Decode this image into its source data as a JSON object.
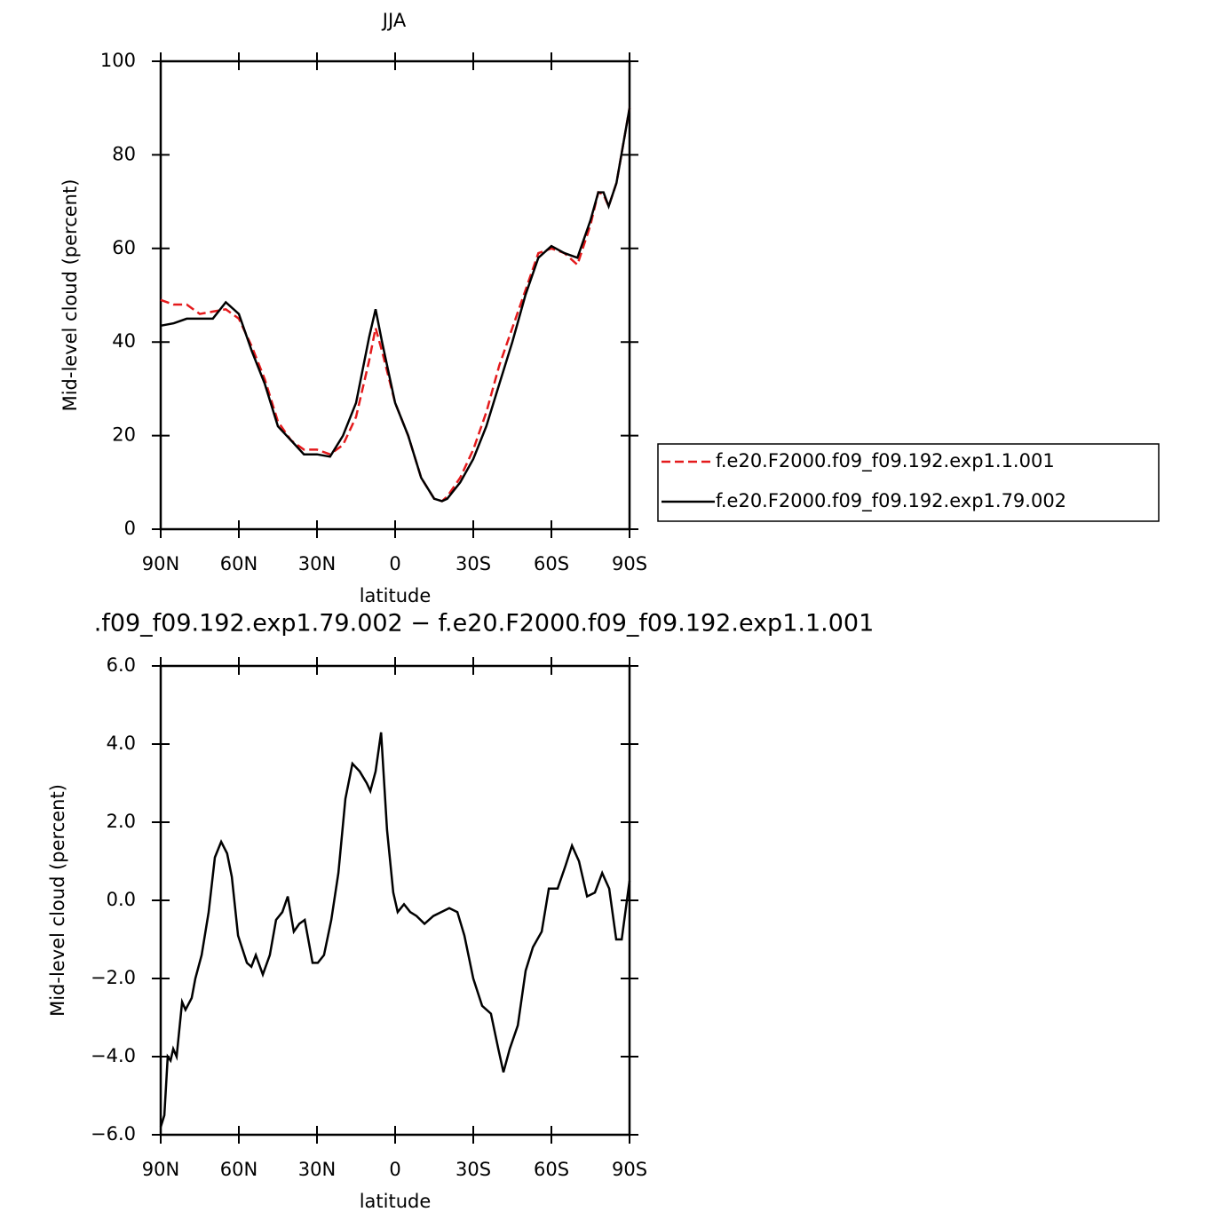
{
  "chart_data": [
    {
      "type": "line",
      "title": "JJA",
      "xlabel": "latitude",
      "ylabel": "Mid-level cloud (percent)",
      "x": [
        90,
        85,
        80,
        75,
        70,
        65,
        60,
        55,
        50,
        45,
        40,
        35,
        30,
        25,
        20,
        15,
        10,
        7.5,
        5,
        0,
        -5,
        -10,
        -15,
        -18,
        -20,
        -25,
        -30,
        -35,
        -40,
        -45,
        -50,
        -55,
        -60,
        -65,
        -70,
        -75,
        -78,
        -80,
        -82,
        -85,
        -90
      ],
      "xlim": [
        90,
        -90
      ],
      "xticks": [
        {
          "value": 90,
          "label": "90N"
        },
        {
          "value": 60,
          "label": "60N"
        },
        {
          "value": 30,
          "label": "30N"
        },
        0,
        {
          "value": -30,
          "label": "30S"
        },
        {
          "value": -60,
          "label": "60S"
        },
        {
          "value": -90,
          "label": "90S"
        }
      ],
      "ylim": [
        0,
        100
      ],
      "yticks": [
        0,
        20,
        40,
        60,
        80,
        100
      ],
      "legend": "right",
      "series": [
        {
          "name": "f.e20.F2000.f09_f09.192.exp1.1.001",
          "color": "#e41a1c",
          "dashed": true,
          "values": [
            49,
            48,
            48,
            46,
            46.5,
            47,
            45,
            39,
            32,
            23,
            19,
            17,
            17,
            16,
            18,
            24,
            36,
            43,
            38,
            27,
            20,
            11,
            6.5,
            6,
            7,
            11,
            17,
            25,
            35,
            43,
            51,
            59,
            60,
            59,
            56.5,
            65,
            72,
            71.5,
            69,
            74,
            90
          ]
        },
        {
          "name": "f.e20.F2000.f09_f09.192.exp1.79.002",
          "color": "#000000",
          "dashed": false,
          "values": [
            43.5,
            44,
            45,
            45,
            45,
            48.5,
            46,
            38,
            31,
            22,
            19,
            16,
            16,
            15.5,
            20,
            27,
            41,
            47,
            40,
            27,
            20,
            11,
            6.5,
            6,
            6.5,
            10,
            15,
            22,
            31,
            40,
            50,
            58,
            60.5,
            59,
            58,
            66,
            72,
            72,
            69,
            74,
            90
          ]
        }
      ]
    },
    {
      "type": "line",
      "title": ".f09_f09.192.exp1.79.002 − f.e20.F2000.f09_f09.192.exp1.1.001",
      "xlabel": "latitude",
      "ylabel": "Mid-level cloud (percent)",
      "x": [
        90,
        88.6,
        87.3,
        86.2,
        85.2,
        83.9,
        81.8,
        80.5,
        78.1,
        76.7,
        74.3,
        71.6,
        69.2,
        66.8,
        64.5,
        62.7,
        60.3,
        56.9,
        55.2,
        53.5,
        50.8,
        48.1,
        45.7,
        43.3,
        41.2,
        38.9,
        36.8,
        34.7,
        31.7,
        29.7,
        27.3,
        24.5,
        21.8,
        19.1,
        16.4,
        13.6,
        10.9,
        9.5,
        7.5,
        5.4,
        3.1,
        0.7,
        -1,
        -3.4,
        -5.8,
        -8.2,
        -11.3,
        -14.7,
        -17.7,
        -20.8,
        -23.9,
        -26.6,
        -30,
        -33.4,
        -36.8,
        -39.6,
        -41.6,
        -44,
        -47.1,
        -50.1,
        -52.9,
        -56.3,
        -59,
        -62.4,
        -65.5,
        -67.9,
        -70.6,
        -73.7,
        -76.7,
        -79.5,
        -82.2,
        -84.9,
        -87,
        -90
      ],
      "xlim": [
        90,
        -90
      ],
      "xticks": [
        {
          "value": 90,
          "label": "90N"
        },
        {
          "value": 60,
          "label": "60N"
        },
        {
          "value": 30,
          "label": "30N"
        },
        0,
        {
          "value": -30,
          "label": "30S"
        },
        {
          "value": -60,
          "label": "60S"
        },
        {
          "value": -90,
          "label": "90S"
        }
      ],
      "ylim": [
        -6,
        6
      ],
      "yticks": [
        {
          "value": -6,
          "label": "−6.0"
        },
        {
          "value": -4,
          "label": "−4.0"
        },
        {
          "value": -2,
          "label": "−2.0"
        },
        {
          "value": 0,
          "label": "0.0"
        },
        {
          "value": 2,
          "label": "2.0"
        },
        {
          "value": 4,
          "label": "4.0"
        },
        {
          "value": 6,
          "label": "6.0"
        }
      ],
      "series": [
        {
          "color": "#000000",
          "values": [
            -5.8,
            -5.5,
            -4.0,
            -4.1,
            -3.8,
            -4.0,
            -2.6,
            -2.8,
            -2.5,
            -2.0,
            -1.4,
            -0.3,
            1.1,
            1.5,
            1.2,
            0.6,
            -0.9,
            -1.6,
            -1.7,
            -1.4,
            -1.9,
            -1.4,
            -0.5,
            -0.3,
            0.1,
            -0.8,
            -0.6,
            -0.5,
            -1.6,
            -1.6,
            -1.4,
            -0.5,
            0.7,
            2.6,
            3.5,
            3.3,
            3.0,
            2.8,
            3.3,
            4.3,
            1.8,
            0.2,
            -0.3,
            -0.1,
            -0.3,
            -0.4,
            -0.6,
            -0.4,
            -0.3,
            -0.2,
            -0.3,
            -0.9,
            -2.0,
            -2.7,
            -2.9,
            -3.8,
            -4.4,
            -3.8,
            -3.2,
            -1.8,
            -1.2,
            -0.8,
            0.3,
            0.3,
            0.9,
            1.4,
            1.0,
            0.1,
            0.2,
            0.7,
            0.3,
            -1.0,
            -1.0,
            0.5
          ]
        }
      ]
    }
  ]
}
